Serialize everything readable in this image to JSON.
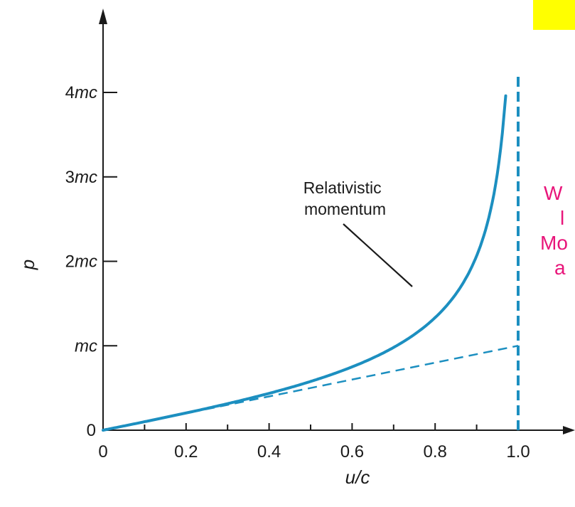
{
  "chart_data": {
    "type": "line",
    "xlabel": "u/c",
    "ylabel": "p",
    "xlim": [
      0,
      1.0
    ],
    "ylim": [
      0,
      4
    ],
    "x_ticks": [
      {
        "value": 0,
        "label": "0"
      },
      {
        "value": 0.2,
        "label": "0.2"
      },
      {
        "value": 0.4,
        "label": "0.4"
      },
      {
        "value": 0.6,
        "label": "0.6"
      },
      {
        "value": 0.8,
        "label": "0.8"
      },
      {
        "value": 1.0,
        "label": "1.0"
      }
    ],
    "y_ticks": [
      {
        "value": 0,
        "label": "0"
      },
      {
        "value": 1,
        "label": "mc",
        "coef": "",
        "unit": "mc"
      },
      {
        "value": 2,
        "label": "2mc",
        "coef": "2",
        "unit": "mc"
      },
      {
        "value": 3,
        "label": "3mc",
        "coef": "3",
        "unit": "mc"
      },
      {
        "value": 4,
        "label": "4mc",
        "coef": "4",
        "unit": "mc"
      }
    ],
    "y_unit": "mc",
    "series": [
      {
        "name": "Relativistic momentum",
        "style": "solid",
        "color": "#1c8fc0",
        "x": [
          0,
          0.1,
          0.2,
          0.3,
          0.4,
          0.5,
          0.6,
          0.7,
          0.8,
          0.85,
          0.9,
          0.93,
          0.95,
          0.96,
          0.97
        ],
        "y": [
          0,
          0.1,
          0.2,
          0.31,
          0.44,
          0.58,
          0.75,
          0.98,
          1.33,
          1.61,
          2.06,
          2.52,
          3.04,
          3.43,
          3.96
        ]
      },
      {
        "style": "dashed",
        "color": "#1c8fc0",
        "x": [
          0,
          1.0
        ],
        "y": [
          0,
          1.0
        ]
      }
    ],
    "asymptote": {
      "x": 1.0,
      "style": "dashed",
      "color": "#1c8fc0"
    },
    "annotation_label_lines": [
      "Relativistic",
      "momentum"
    ],
    "grid": false,
    "legend": "none"
  },
  "clipped_text": {
    "lines": [
      "W",
      "l",
      "Mo",
      "a"
    ],
    "color": "#e8157a"
  },
  "highlight_box_color": "#ffff00"
}
